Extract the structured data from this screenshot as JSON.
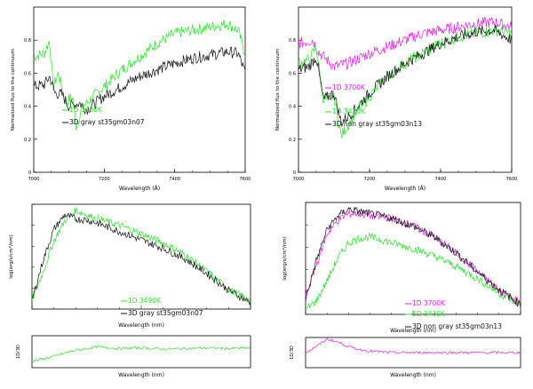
{
  "chart_data": [
    {
      "id": "tl",
      "type": "line",
      "xlabel": "Wavelength (Å)",
      "ylabel": "Normalized flux to the continuum",
      "xlim": [
        7000,
        7600
      ],
      "ylim": [
        0,
        1
      ],
      "xticks": [
        7000,
        7200,
        7400,
        7600
      ],
      "yticks": [
        0,
        0.2,
        0.4,
        0.6,
        0.8
      ],
      "yticklabels": [
        "0",
        "0.2",
        "0.4",
        "0.6",
        "0.8"
      ],
      "legend": [
        {
          "label": "1D 3490K",
          "color": "#33dd33"
        },
        {
          "label": "3D gray st35gm03n07",
          "color": "#111111"
        }
      ],
      "series": [
        {
          "name": "1D 3490K",
          "color": "#33dd33",
          "x": [
            7000,
            7030,
            7045,
            7055,
            7070,
            7090,
            7110,
            7120,
            7140,
            7200,
            7250,
            7300,
            7350,
            7400,
            7450,
            7500,
            7550,
            7580,
            7600
          ],
          "y": [
            0.7,
            0.72,
            0.8,
            0.52,
            0.6,
            0.42,
            0.46,
            0.28,
            0.4,
            0.52,
            0.62,
            0.7,
            0.78,
            0.84,
            0.86,
            0.88,
            0.9,
            0.86,
            0.72
          ]
        },
        {
          "name": "3D gray st35gm03n07",
          "color": "#111111",
          "x": [
            7000,
            7030,
            7045,
            7060,
            7080,
            7100,
            7130,
            7150,
            7200,
            7250,
            7300,
            7350,
            7400,
            7450,
            7500,
            7550,
            7580,
            7600
          ],
          "y": [
            0.52,
            0.53,
            0.58,
            0.48,
            0.47,
            0.4,
            0.42,
            0.38,
            0.46,
            0.52,
            0.58,
            0.62,
            0.66,
            0.69,
            0.71,
            0.73,
            0.72,
            0.6
          ]
        }
      ]
    },
    {
      "id": "tr",
      "type": "line",
      "xlabel": "Wavelength (Å)",
      "ylabel": "Normalized flux to the continuum",
      "xlim": [
        7000,
        7600
      ],
      "ylim": [
        0,
        1
      ],
      "xticks": [
        7000,
        7200,
        7400,
        7600
      ],
      "yticks": [
        0,
        0.2,
        0.4,
        0.6,
        0.8
      ],
      "yticklabels": [
        "0",
        "0.2",
        "0.4",
        "0.6",
        "0.8"
      ],
      "legend": [
        {
          "label": "1D 3700K",
          "color": "#dd22dd"
        },
        {
          "label": "1D 3430K",
          "color": "#33dd33"
        },
        {
          "label": "3D non gray st35gm03n13",
          "color": "#111111"
        }
      ],
      "series": [
        {
          "name": "1D 3700K",
          "color": "#dd22dd",
          "x": [
            7000,
            7040,
            7060,
            7100,
            7140,
            7200,
            7250,
            7300,
            7350,
            7400,
            7450,
            7500,
            7550,
            7600
          ],
          "y": [
            0.78,
            0.8,
            0.72,
            0.64,
            0.66,
            0.72,
            0.76,
            0.8,
            0.84,
            0.86,
            0.88,
            0.9,
            0.91,
            0.88
          ]
        },
        {
          "name": "1D 3430K",
          "color": "#33dd33",
          "x": [
            7000,
            7030,
            7050,
            7070,
            7100,
            7120,
            7150,
            7200,
            7250,
            7300,
            7350,
            7400,
            7450,
            7500,
            7550,
            7600
          ],
          "y": [
            0.66,
            0.68,
            0.76,
            0.44,
            0.46,
            0.22,
            0.32,
            0.46,
            0.58,
            0.66,
            0.72,
            0.78,
            0.82,
            0.84,
            0.86,
            0.84
          ]
        },
        {
          "name": "3D non gray st35gm03n13",
          "color": "#111111",
          "x": [
            7000,
            7030,
            7050,
            7070,
            7100,
            7120,
            7150,
            7200,
            7250,
            7300,
            7350,
            7400,
            7450,
            7500,
            7550,
            7600
          ],
          "y": [
            0.62,
            0.64,
            0.7,
            0.44,
            0.48,
            0.3,
            0.36,
            0.48,
            0.58,
            0.66,
            0.72,
            0.78,
            0.82,
            0.85,
            0.86,
            0.8
          ]
        }
      ]
    },
    {
      "id": "bl",
      "type": "line",
      "xlabel": "Wavelength (nm)",
      "ylabel": "log(erg/s/cm²/nm)",
      "xlim": [
        0,
        10
      ],
      "ylim": [
        0,
        10
      ],
      "legend": [
        {
          "label": "1D 3490K",
          "color": "#33dd33"
        },
        {
          "label": "3D gray st35gm03n07",
          "color": "#111111"
        }
      ],
      "series": [
        {
          "name": "1D 3490K",
          "color": "#33dd33",
          "x": [
            0,
            0.5,
            1.0,
            1.5,
            2.0,
            2.5,
            3.0,
            3.5,
            4.0,
            5.0,
            6.0,
            7.0,
            8.0,
            9.0,
            10.0
          ],
          "y": [
            0.8,
            3.5,
            6.5,
            8.4,
            9.4,
            9.0,
            8.6,
            8.3,
            8.0,
            7.2,
            6.3,
            5.2,
            3.6,
            1.9,
            0.8
          ]
        },
        {
          "name": "3D gray st35gm03n07",
          "color": "#111111",
          "x": [
            0,
            0.5,
            1.0,
            1.5,
            2.0,
            2.5,
            3.0,
            3.5,
            4.0,
            5.0,
            6.0,
            7.0,
            8.0,
            9.0,
            10.0
          ],
          "y": [
            0.8,
            4.6,
            7.6,
            9.0,
            8.6,
            8.5,
            8.2,
            7.8,
            7.4,
            6.6,
            5.8,
            4.8,
            3.4,
            1.8,
            0.6
          ]
        }
      ],
      "ratio": {
        "ylabel": "1D/3D",
        "color": "#33dd33",
        "x": [
          0,
          1,
          2,
          3,
          4,
          5,
          6,
          7,
          8,
          9,
          10
        ],
        "y": [
          0.2,
          0.35,
          0.55,
          0.65,
          0.6,
          0.62,
          0.58,
          0.6,
          0.62,
          0.6,
          0.62
        ]
      }
    },
    {
      "id": "br",
      "type": "line",
      "xlabel": "Wavelength (nm)",
      "ylabel": "log(erg/s/cm²/nm)",
      "xlim": [
        0,
        10
      ],
      "ylim": [
        0,
        10
      ],
      "legend": [
        {
          "label": "1D 3700K",
          "color": "#dd22dd"
        },
        {
          "label": "1D 3430K",
          "color": "#33dd33"
        },
        {
          "label": "3D non gray st35gm03n13",
          "color": "#111111"
        }
      ],
      "series": [
        {
          "name": "1D 3700K",
          "color": "#dd22dd",
          "x": [
            0,
            0.5,
            1.0,
            1.5,
            2.0,
            2.5,
            3.0,
            3.5,
            4.0,
            5.0,
            6.0,
            7.0,
            8.0,
            9.0,
            10.0
          ],
          "y": [
            1.6,
            4.4,
            7.2,
            8.4,
            9.0,
            9.0,
            8.8,
            8.7,
            8.6,
            7.9,
            6.9,
            5.5,
            3.8,
            2.2,
            1.0
          ]
        },
        {
          "name": "1D 3430K",
          "color": "#33dd33",
          "x": [
            0,
            0.5,
            1.0,
            1.5,
            2.0,
            2.5,
            3.0,
            3.5,
            4.0,
            5.0,
            6.0,
            7.0,
            8.0,
            9.0,
            10.0
          ],
          "y": [
            0.4,
            1.2,
            3.0,
            5.0,
            6.4,
            6.8,
            6.9,
            6.7,
            6.4,
            5.9,
            5.2,
            4.3,
            3.2,
            1.9,
            0.8
          ]
        },
        {
          "name": "3D non gray st35gm03n13",
          "color": "#111111",
          "x": [
            0,
            0.5,
            1.0,
            1.5,
            2.0,
            2.5,
            3.0,
            3.5,
            4.0,
            5.0,
            6.0,
            7.0,
            8.0,
            9.0,
            10.0
          ],
          "y": [
            1.4,
            4.8,
            7.6,
            8.8,
            9.4,
            9.2,
            9.0,
            8.8,
            8.6,
            7.9,
            6.9,
            5.5,
            3.8,
            2.2,
            0.9
          ]
        }
      ],
      "ratio": {
        "ylabel": "1D/3D",
        "color": "#dd22dd",
        "x": [
          0,
          0.5,
          1,
          1.5,
          2,
          2.5,
          3,
          4,
          5,
          6,
          7,
          8,
          9,
          10
        ],
        "y": [
          0.5,
          0.7,
          0.95,
          0.85,
          0.7,
          0.6,
          0.55,
          0.5,
          0.5,
          0.5,
          0.5,
          0.5,
          0.5,
          0.5
        ]
      }
    }
  ]
}
